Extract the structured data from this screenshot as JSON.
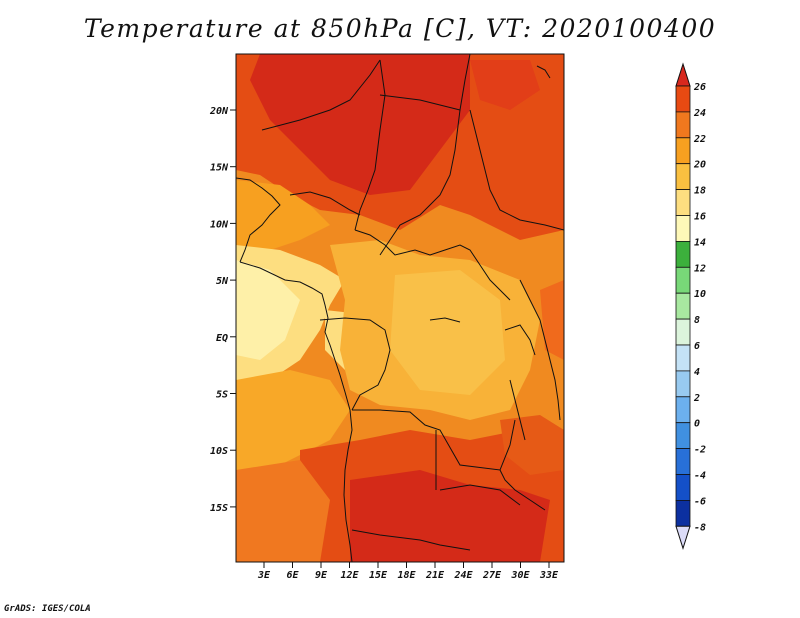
{
  "title": "Temperature at 850hPa [C], VT: 2020100400",
  "credit": "GrADS: IGES/COLA",
  "map": {
    "lat_labels": [
      "20N",
      "15N",
      "10N",
      "5N",
      "EQ",
      "5S",
      "10S",
      "15S"
    ],
    "lon_labels": [
      "3E",
      "6E",
      "9E",
      "12E",
      "15E",
      "18E",
      "21E",
      "24E",
      "27E",
      "30E",
      "33E"
    ]
  },
  "colorbar": {
    "labels": [
      "26",
      "24",
      "22",
      "20",
      "18",
      "16",
      "14",
      "12",
      "10",
      "8",
      "6",
      "4",
      "2",
      "0",
      "-2",
      "-4",
      "-6",
      "-8"
    ],
    "colors": [
      "#d8281e",
      "#e84a12",
      "#f0781e",
      "#f7a020",
      "#fac040",
      "#fdde80",
      "#fef8b8",
      "#3cb03c",
      "#78d878",
      "#a8e8a0",
      "#dcf4dc",
      "#c4e2f6",
      "#98caf0",
      "#6cb0ee",
      "#4090e0",
      "#2870d8",
      "#1450c8",
      "#0c30a0",
      "#041070"
    ]
  }
}
